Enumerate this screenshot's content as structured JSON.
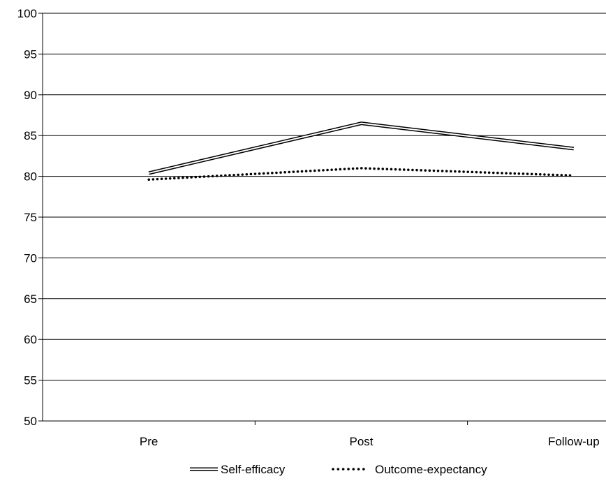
{
  "chart_data": {
    "type": "line",
    "title": "",
    "xlabel": "",
    "ylabel": "",
    "categories": [
      "Pre",
      "Post",
      "Follow-up"
    ],
    "ylim": [
      50,
      100
    ],
    "yticks": [
      50,
      55,
      60,
      65,
      70,
      75,
      80,
      85,
      90,
      95,
      100
    ],
    "grid": true,
    "legend_position": "bottom",
    "series": [
      {
        "name": "Self-efficacy",
        "style": "double",
        "values": [
          80.4,
          86.5,
          83.4
        ]
      },
      {
        "name": "Outcome-expectancy",
        "style": "dotted",
        "values": [
          79.6,
          81.0,
          80.1
        ]
      }
    ]
  }
}
